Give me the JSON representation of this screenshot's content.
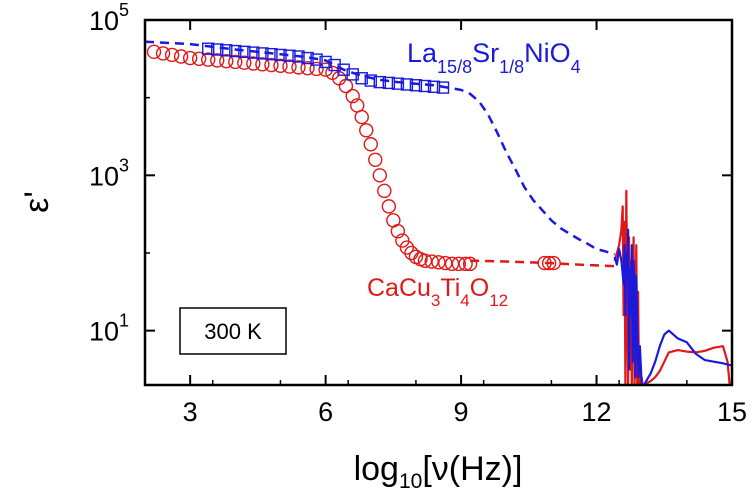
{
  "chart_data": {
    "type": "scatter",
    "xlabel": {
      "main": "log",
      "sub": "10",
      "rest": "[ν(Hz)]"
    },
    "ylabel": "ε'",
    "xlim": [
      2,
      15
    ],
    "ylim_log10": [
      0.3,
      5
    ],
    "yscale": "log",
    "x_ticks": [
      {
        "value": 3,
        "label": "3"
      },
      {
        "value": 6,
        "label": "6"
      },
      {
        "value": 9,
        "label": "9"
      },
      {
        "value": 12,
        "label": "12"
      },
      {
        "value": 15,
        "label": "15"
      }
    ],
    "y_ticks": [
      {
        "value": 1,
        "base": "10",
        "exp": "1"
      },
      {
        "value": 3,
        "base": "10",
        "exp": "3"
      },
      {
        "value": 5,
        "base": "10",
        "exp": "5"
      }
    ],
    "box_label": "300 K",
    "labels": {
      "lsno": {
        "p1": "La",
        "s1": "15/8",
        "p2": "Sr",
        "s2": "1/8",
        "p3": "NiO",
        "s3": "4"
      },
      "ccto": {
        "p1": "CaCu",
        "s1": "3",
        "p2": "Ti",
        "s2": "4",
        "p3": "O",
        "s3": "12"
      }
    },
    "colors": {
      "lsno": "#1a1adf",
      "ccto": "#e01818"
    },
    "series": [
      {
        "id": "lsno-points",
        "marker": "square",
        "color": "#1a1adf",
        "x": [
          3.4,
          3.6,
          3.8,
          4.0,
          4.2,
          4.4,
          4.6,
          4.8,
          5.0,
          5.2,
          5.4,
          5.6,
          5.8,
          6.0,
          6.2,
          6.4,
          6.6,
          6.8,
          7.0,
          7.2,
          7.4,
          7.6,
          7.8,
          8.0,
          8.2,
          8.4,
          8.6
        ],
        "log10_y": [
          4.63,
          4.62,
          4.61,
          4.6,
          4.59,
          4.58,
          4.57,
          4.56,
          4.55,
          4.54,
          4.53,
          4.51,
          4.49,
          4.46,
          4.42,
          4.36,
          4.3,
          4.25,
          4.22,
          4.2,
          4.19,
          4.18,
          4.17,
          4.16,
          4.15,
          4.14,
          4.13
        ]
      },
      {
        "id": "lsno-fit",
        "style": "dashed",
        "color": "#1a1adf",
        "x": [
          2.0,
          3.0,
          4.0,
          5.0,
          5.6,
          6.0,
          6.4,
          6.8,
          7.2,
          7.6,
          8.0,
          8.4,
          8.8,
          9.0,
          9.2,
          9.4,
          9.6,
          9.8,
          10.0,
          10.2,
          10.4,
          10.6,
          10.8,
          11.0,
          11.2,
          11.4,
          11.6,
          11.8,
          12.0,
          12.2,
          12.4
        ],
        "log10_y": [
          4.72,
          4.69,
          4.62,
          4.56,
          4.52,
          4.48,
          4.36,
          4.28,
          4.23,
          4.2,
          4.18,
          4.16,
          4.12,
          4.1,
          4.05,
          3.95,
          3.78,
          3.55,
          3.3,
          3.08,
          2.85,
          2.68,
          2.55,
          2.42,
          2.32,
          2.25,
          2.18,
          2.12,
          2.05,
          2.02,
          1.98
        ]
      },
      {
        "id": "ccto-points",
        "marker": "circle",
        "color": "#e01818",
        "x": [
          2.2,
          2.4,
          2.6,
          2.8,
          3.0,
          3.2,
          3.4,
          3.6,
          3.8,
          4.0,
          4.2,
          4.4,
          4.6,
          4.8,
          5.0,
          5.2,
          5.4,
          5.6,
          5.8,
          6.0,
          6.15,
          6.3,
          6.45,
          6.6,
          6.7,
          6.8,
          6.9,
          7.0,
          7.1,
          7.2,
          7.3,
          7.4,
          7.5,
          7.6,
          7.7,
          7.8,
          7.9,
          8.0,
          8.1,
          8.2,
          8.35,
          8.5,
          8.65,
          8.8,
          8.95,
          9.1,
          9.2,
          10.85,
          10.95,
          11.05
        ],
        "log10_y": [
          4.59,
          4.57,
          4.55,
          4.53,
          4.51,
          4.5,
          4.49,
          4.48,
          4.47,
          4.46,
          4.45,
          4.44,
          4.43,
          4.42,
          4.41,
          4.4,
          4.39,
          4.38,
          4.37,
          4.36,
          4.32,
          4.25,
          4.15,
          4.02,
          3.9,
          3.75,
          3.58,
          3.4,
          3.2,
          3.0,
          2.8,
          2.6,
          2.42,
          2.28,
          2.16,
          2.07,
          2.0,
          1.95,
          1.92,
          1.9,
          1.89,
          1.88,
          1.87,
          1.86,
          1.86,
          1.86,
          1.86,
          1.87,
          1.87,
          1.87
        ]
      },
      {
        "id": "ccto-fit",
        "style": "dashed",
        "color": "#e01818",
        "x": [
          9.2,
          10.0,
          11.0,
          11.6,
          12.0,
          12.4
        ],
        "log10_y": [
          1.9,
          1.89,
          1.87,
          1.85,
          1.84,
          1.83
        ]
      },
      {
        "id": "ccto-noise",
        "style": "solid",
        "color": "#e01818",
        "x": [
          12.4,
          12.45,
          12.5,
          12.55,
          12.58,
          12.6,
          12.62,
          12.64,
          12.66,
          12.68,
          12.7,
          12.72,
          12.74,
          12.76,
          12.78,
          12.8,
          12.82,
          12.84,
          12.86,
          12.88,
          12.9,
          12.92,
          12.94,
          12.96,
          12.98,
          13.0,
          13.02,
          13.05,
          13.1,
          13.2,
          13.3,
          13.4,
          13.5,
          13.6,
          13.8,
          14.0,
          14.2,
          14.4,
          14.6,
          14.8,
          14.9,
          14.95
        ],
        "log10_y": [
          1.9,
          2.0,
          2.1,
          2.3,
          2.6,
          1.2,
          2.4,
          0.3,
          2.8,
          1.6,
          0.3,
          2.2,
          0.5,
          1.9,
          0.3,
          1.4,
          2.2,
          0.3,
          1.0,
          2.1,
          0.3,
          1.5,
          0.3,
          0.7,
          0.3,
          0.4,
          0.3,
          0.3,
          0.32,
          0.35,
          0.4,
          0.48,
          0.6,
          0.72,
          0.75,
          0.73,
          0.72,
          0.74,
          0.78,
          0.8,
          0.6,
          0.3
        ]
      },
      {
        "id": "lsno-noise",
        "style": "solid",
        "color": "#1a1adf",
        "x": [
          12.4,
          12.45,
          12.5,
          12.55,
          12.6,
          12.62,
          12.64,
          12.66,
          12.68,
          12.7,
          12.72,
          12.74,
          12.76,
          12.78,
          12.8,
          12.82,
          12.84,
          12.86,
          12.88,
          12.9,
          12.93,
          12.96,
          13.0,
          13.05,
          13.1,
          13.2,
          13.3,
          13.4,
          13.5,
          13.6,
          13.8,
          14.0,
          14.2,
          14.4,
          14.6,
          14.8,
          15.0
        ],
        "log10_y": [
          1.95,
          1.85,
          2.05,
          1.9,
          1.6,
          2.1,
          1.2,
          2.0,
          1.7,
          2.3,
          0.5,
          1.8,
          1.2,
          2.1,
          0.6,
          1.9,
          1.5,
          0.4,
          1.7,
          1.1,
          0.4,
          0.8,
          0.3,
          0.3,
          0.35,
          0.45,
          0.6,
          0.8,
          0.95,
          1.0,
          0.9,
          0.85,
          0.7,
          0.62,
          0.6,
          0.58,
          0.55
        ]
      }
    ]
  }
}
